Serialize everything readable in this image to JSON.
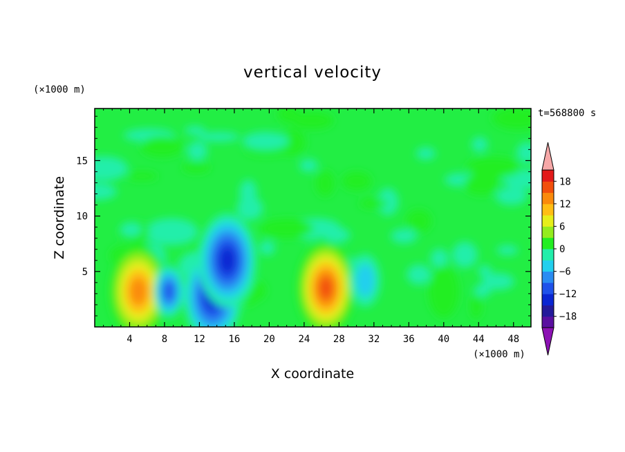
{
  "chart_data": {
    "type": "heatmap",
    "title": "vertical velocity",
    "xlabel": "X coordinate",
    "ylabel": "Z coordinate",
    "x_unit": "(×1000 m)",
    "y_unit": "(×1000 m)",
    "time_label": "t=568800 s",
    "xlim": [
      0,
      50
    ],
    "ylim": [
      0,
      19.7
    ],
    "x_ticks": [
      4,
      8,
      12,
      16,
      20,
      24,
      28,
      32,
      36,
      40,
      44,
      48
    ],
    "y_ticks": [
      5,
      10,
      15
    ],
    "colorbar": {
      "levels": [
        -21,
        -18,
        -15,
        -12,
        -9,
        -6,
        -3,
        0,
        3,
        6,
        9,
        12,
        15,
        18,
        21
      ],
      "tick_labels": [
        -18,
        -12,
        -6,
        0,
        6,
        12,
        18
      ],
      "colors": [
        "#5a0fa0",
        "#241a9a",
        "#0a26d2",
        "#1f52ea",
        "#2a8cf2",
        "#22cfee",
        "#22eeaa",
        "#22ee22",
        "#94ec1e",
        "#e6ef1a",
        "#ffbe14",
        "#fa8a0c",
        "#f24f0c",
        "#e21a1a"
      ],
      "under_color": "#8c12b4",
      "over_color": "#f6a8a8"
    },
    "features": [
      {
        "x": 5.0,
        "z": 3.2,
        "peak": 14,
        "description": "updraft"
      },
      {
        "x": 26.5,
        "z": 3.5,
        "peak": 17,
        "description": "updraft"
      },
      {
        "x": 8.5,
        "z": 3.2,
        "peak": -12,
        "description": "downdraft"
      },
      {
        "x": 13.5,
        "z": 2.8,
        "peak": -16,
        "description": "downdraft"
      },
      {
        "x": 15.2,
        "z": 6.0,
        "peak": -15,
        "description": "downdraft"
      },
      {
        "x": 31.0,
        "z": 4.2,
        "peak": -7,
        "description": "downdraft"
      },
      {
        "x": 40.0,
        "z": 3.2,
        "peak": 4,
        "description": "updraft"
      }
    ]
  }
}
